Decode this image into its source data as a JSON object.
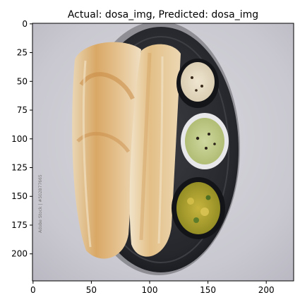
{
  "chart_data": {
    "type": "image",
    "title": "Actual: dosa_img, Predicted: dosa_img",
    "image_description": "Two rolled golden dosas on a dark round plate with three bowls: coconut chutney, green chutney, potato masala",
    "watermark": "Adobe Stock | #502877665",
    "xlim": [
      -0.5,
      223.5
    ],
    "ylim": [
      223.5,
      -0.5
    ],
    "xticks": [
      0,
      50,
      100,
      150,
      200
    ],
    "yticks": [
      0,
      25,
      50,
      75,
      100,
      125,
      150,
      175,
      200
    ],
    "grid": false
  }
}
